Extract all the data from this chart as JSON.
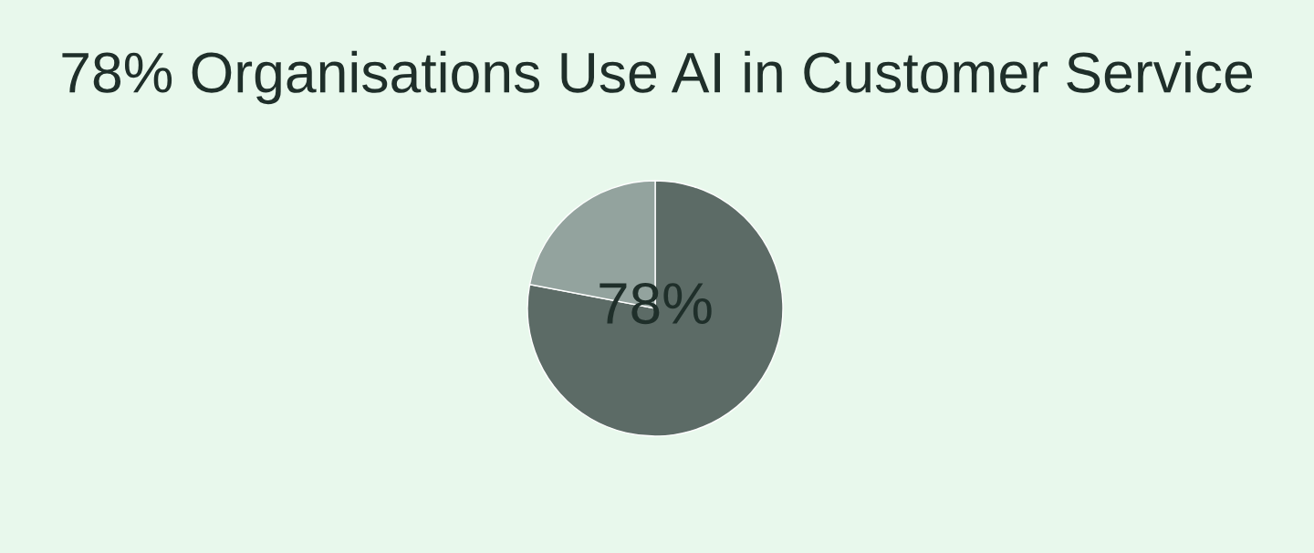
{
  "chart_data": {
    "type": "pie",
    "title": "78% Organisations Use AI in Customer Service",
    "categories": [
      null,
      null
    ],
    "values": [
      78,
      22
    ],
    "colors": [
      "#5c6b66",
      "#93a39e"
    ],
    "annotations": [
      "78%"
    ]
  }
}
